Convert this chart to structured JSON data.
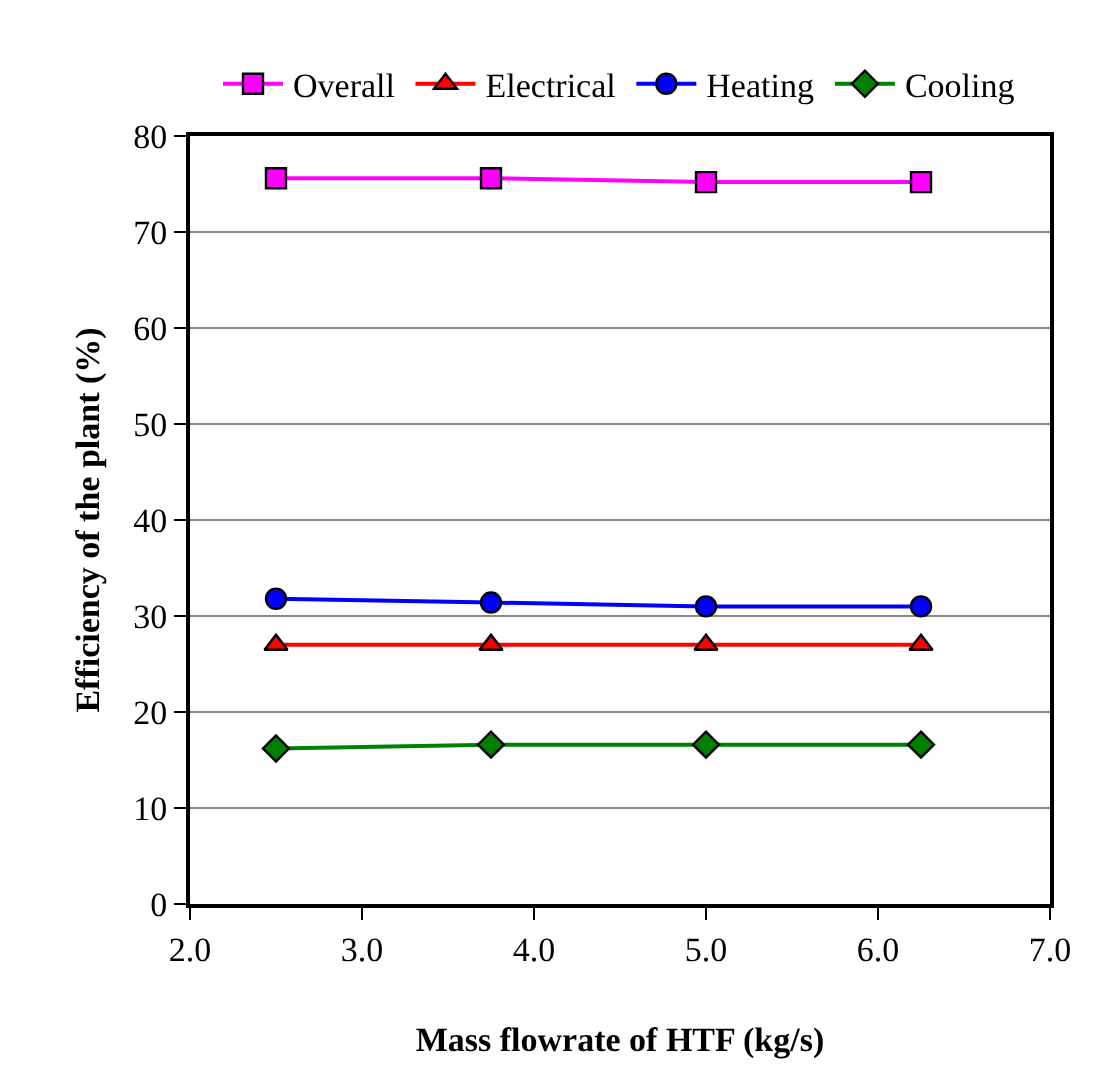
{
  "chart_data": {
    "type": "line",
    "xlabel": "Mass flowrate of HTF (kg/s)",
    "ylabel": "Efficiency of the plant (%)",
    "x": [
      2.5,
      3.75,
      5.0,
      6.25
    ],
    "xlim": [
      2.0,
      7.0
    ],
    "xticks": [
      {
        "value": 2,
        "label": "2.0"
      },
      {
        "value": 3,
        "label": "3.0"
      },
      {
        "value": 4,
        "label": "4.0"
      },
      {
        "value": 5,
        "label": "5.0"
      },
      {
        "value": 6,
        "label": "6.0"
      },
      {
        "value": 7,
        "label": "7.0"
      }
    ],
    "ylim": [
      0,
      80
    ],
    "yticks": [
      0,
      10,
      20,
      30,
      40,
      50,
      60,
      70,
      80
    ],
    "grid": "y",
    "legend": "top",
    "series": [
      {
        "name": "Overall",
        "color": "#ff00ff",
        "marker": "square",
        "values": [
          75.6,
          75.6,
          75.2,
          75.2
        ]
      },
      {
        "name": "Electrical",
        "color": "#ff0000",
        "marker": "triangle",
        "values": [
          27.0,
          27.0,
          27.0,
          27.0
        ]
      },
      {
        "name": "Heating",
        "color": "#0000ff",
        "marker": "circle",
        "values": [
          31.8,
          31.4,
          31.0,
          31.0
        ]
      },
      {
        "name": "Cooling",
        "color": "#008000",
        "marker": "diamond",
        "values": [
          16.2,
          16.6,
          16.6,
          16.6
        ]
      }
    ]
  }
}
